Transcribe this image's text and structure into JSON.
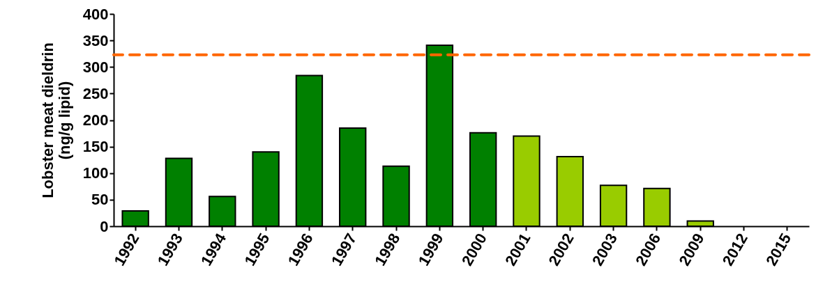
{
  "chart_data": {
    "type": "bar",
    "ylabel": "Lobster meat dieldrin\n(ng/g lipid)",
    "categories": [
      "1992",
      "1993",
      "1994",
      "1995",
      "1996",
      "1997",
      "1998",
      "1999",
      "2000",
      "2001",
      "2002",
      "2003",
      "2006",
      "2009",
      "2012",
      "2015"
    ],
    "values": [
      29,
      128,
      56,
      140,
      284,
      185,
      113,
      341,
      176,
      170,
      131,
      77,
      71,
      10,
      null,
      null
    ],
    "colors": [
      "#008000",
      "#008000",
      "#008000",
      "#008000",
      "#008000",
      "#008000",
      "#008000",
      "#008000",
      "#008000",
      "#99cc00",
      "#99cc00",
      "#99cc00",
      "#99cc00",
      "#99cc00",
      "#99cc00",
      "#99cc00"
    ],
    "ylim": [
      0,
      400
    ],
    "yticks": [
      0,
      50,
      100,
      150,
      200,
      250,
      300,
      350,
      400
    ],
    "ref_lines": [
      {
        "axis": "y",
        "value": 323,
        "color": "#ff6600",
        "line_style": "dashed"
      }
    ],
    "grid": false
  }
}
